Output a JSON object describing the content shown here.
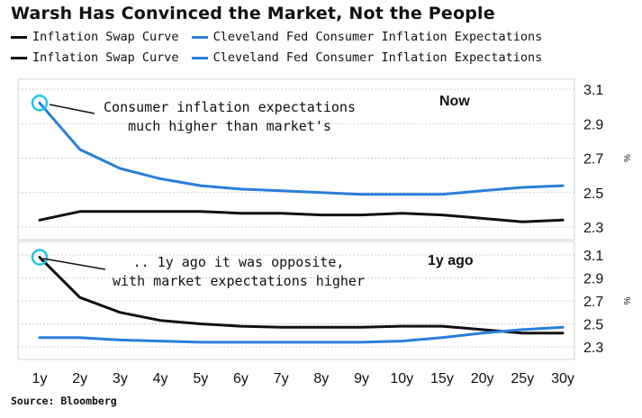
{
  "title": "Warsh Has Convinced the Market, Not the People",
  "legend": [
    {
      "label": "Inflation Swap Curve",
      "color": "#111111"
    },
    {
      "label": "Cleveland Fed Consumer Inflation Expectations",
      "color": "#2a7fd8"
    }
  ],
  "source": "Source: Bloomberg",
  "chart_data": [
    {
      "type": "line",
      "panel_label": "Now",
      "annotation": [
        "Consumer inflation expectations",
        "much higher than market's"
      ],
      "unit": "%",
      "categories": [
        "1y",
        "2y",
        "3y",
        "4y",
        "5y",
        "6y",
        "7y",
        "8y",
        "9y",
        "10y",
        "15y",
        "20y",
        "25y",
        "30y"
      ],
      "yticks": [
        "2.3",
        "2.5",
        "2.7",
        "2.9",
        "3.1"
      ],
      "ylim": [
        2.2,
        3.15
      ],
      "grid": true,
      "series": [
        {
          "name": "Inflation Swap Curve",
          "color": "#111111",
          "values": [
            2.34,
            2.39,
            2.39,
            2.39,
            2.39,
            2.38,
            2.38,
            2.37,
            2.37,
            2.38,
            2.37,
            2.35,
            2.33,
            2.34
          ]
        },
        {
          "name": "Cleveland Fed Consumer Inflation Expectations",
          "color": "#2a7fd8",
          "values": [
            3.02,
            2.75,
            2.64,
            2.58,
            2.54,
            2.52,
            2.51,
            2.5,
            2.49,
            2.49,
            2.49,
            2.51,
            2.53,
            2.54
          ]
        }
      ]
    },
    {
      "type": "line",
      "panel_label": "1y ago",
      "annotation": [
        ".. 1y ago it was opposite,",
        "with market expectations higher"
      ],
      "unit": "%",
      "categories": [
        "1y",
        "2y",
        "3y",
        "4y",
        "5y",
        "6y",
        "7y",
        "8y",
        "9y",
        "10y",
        "15y",
        "20y",
        "25y",
        "30y"
      ],
      "yticks": [
        "2.3",
        "2.5",
        "2.7",
        "2.9",
        "3.1"
      ],
      "ylim": [
        2.2,
        3.15
      ],
      "grid": true,
      "series": [
        {
          "name": "Inflation Swap Curve",
          "color": "#111111",
          "values": [
            3.08,
            2.73,
            2.6,
            2.53,
            2.5,
            2.48,
            2.47,
            2.47,
            2.47,
            2.48,
            2.48,
            2.45,
            2.42,
            2.42
          ]
        },
        {
          "name": "Cleveland Fed Consumer Inflation Expectations",
          "color": "#2a7fd8",
          "values": [
            2.38,
            2.38,
            2.36,
            2.35,
            2.34,
            2.34,
            2.34,
            2.34,
            2.34,
            2.35,
            2.38,
            2.42,
            2.45,
            2.47
          ]
        }
      ]
    }
  ]
}
